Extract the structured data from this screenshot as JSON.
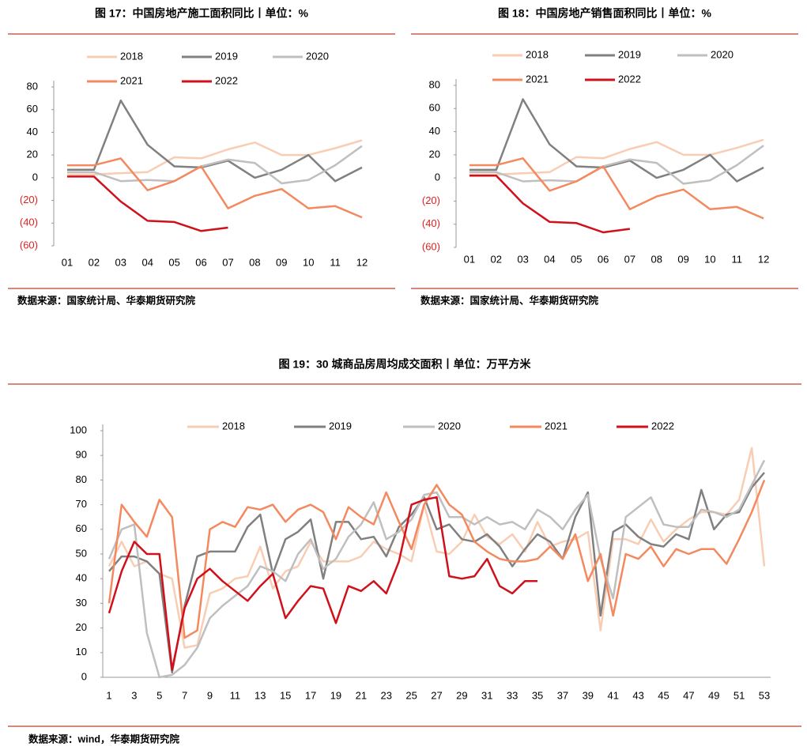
{
  "chart_data": [
    {
      "type": "line",
      "title": "图 17：中国房地产施工面积同比丨单位：%",
      "source": "数据来源：国家统计局、华泰期货研究院",
      "categories": [
        "01",
        "02",
        "03",
        "04",
        "05",
        "06",
        "07",
        "08",
        "09",
        "10",
        "11",
        "12"
      ],
      "ylim": [
        -60,
        80
      ],
      "yticks": [
        {
          "value": -60,
          "label": "(60)"
        },
        {
          "value": -40,
          "label": "(40)"
        },
        {
          "value": -20,
          "label": "(20)"
        },
        0,
        20,
        40,
        60,
        80
      ],
      "series": [
        {
          "name": "2018",
          "color": "#f9cdb4",
          "values": [
            3,
            3,
            4,
            5,
            18,
            17,
            25,
            31,
            20,
            20,
            26,
            33
          ]
        },
        {
          "name": "2019",
          "color": "#808080",
          "values": [
            7,
            7,
            68,
            29,
            10,
            9,
            15,
            0,
            7,
            20,
            -3,
            9
          ]
        },
        {
          "name": "2020",
          "color": "#bfbfbf",
          "values": [
            5,
            5,
            -3,
            -2,
            -3,
            10,
            16,
            13,
            -5,
            -2,
            11,
            28
          ]
        },
        {
          "name": "2021",
          "color": "#f4895f",
          "values": [
            11,
            11,
            17,
            -11,
            -3,
            10,
            -27,
            -16,
            -10,
            -27,
            -25,
            -35
          ]
        },
        {
          "name": "2022",
          "color": "#d0101a",
          "values": [
            1,
            1,
            -21,
            -38,
            -39,
            -47,
            -44,
            null,
            null,
            null,
            null,
            null
          ]
        }
      ]
    },
    {
      "type": "line",
      "title": "图 18：中国房地产销售面积同比丨单位：%",
      "source": "数据来源：国家统计局、华泰期货研究院",
      "categories": [
        "01",
        "02",
        "03",
        "04",
        "05",
        "06",
        "07",
        "08",
        "09",
        "10",
        "11",
        "12"
      ],
      "ylim": [
        -60,
        80
      ],
      "yticks": [
        {
          "value": -60,
          "label": "(60)"
        },
        {
          "value": -40,
          "label": "(40)"
        },
        {
          "value": -20,
          "label": "(20)"
        },
        0,
        20,
        40,
        60,
        80
      ],
      "series": [
        {
          "name": "2018",
          "color": "#f9cdb4",
          "values": [
            3,
            3,
            4,
            5,
            18,
            17,
            25,
            31,
            20,
            20,
            26,
            33
          ]
        },
        {
          "name": "2019",
          "color": "#808080",
          "values": [
            7,
            7,
            68,
            29,
            10,
            9,
            15,
            0,
            7,
            20,
            -3,
            9
          ]
        },
        {
          "name": "2020",
          "color": "#bfbfbf",
          "values": [
            5,
            5,
            -3,
            -2,
            -3,
            10,
            16,
            13,
            -5,
            -2,
            11,
            28
          ]
        },
        {
          "name": "2021",
          "color": "#f4895f",
          "values": [
            11,
            11,
            17,
            -11,
            -3,
            10,
            -27,
            -16,
            -10,
            -27,
            -25,
            -35
          ]
        },
        {
          "name": "2022",
          "color": "#d0101a",
          "values": [
            2,
            2,
            -22,
            -38,
            -39,
            -47,
            -44,
            null,
            null,
            null,
            null,
            null
          ]
        }
      ]
    },
    {
      "type": "line",
      "title": "图 19：30 城商品房周均成交面积丨单位：万平方米",
      "source": "数据来源：wind，华泰期货研究院",
      "categories": [
        "1",
        null,
        "3",
        null,
        "5",
        null,
        "7",
        null,
        "9",
        null,
        "11",
        null,
        "13",
        null,
        "15",
        null,
        "17",
        null,
        "19",
        null,
        "21",
        null,
        "23",
        null,
        "25",
        null,
        "27",
        null,
        "29",
        null,
        "31",
        null,
        "33",
        null,
        "35",
        null,
        "37",
        null,
        "39",
        null,
        "41",
        null,
        "43",
        null,
        "45",
        null,
        "47",
        null,
        "49",
        null,
        "51",
        null,
        "53"
      ],
      "ylim": [
        0,
        100
      ],
      "yticks": [
        0,
        10,
        20,
        30,
        40,
        50,
        60,
        70,
        80,
        90,
        100
      ],
      "series": [
        {
          "name": "2018",
          "color": "#f9cdb4",
          "values": [
            45,
            55,
            45,
            47,
            42,
            40,
            12,
            13,
            34,
            36,
            40,
            41,
            53,
            36,
            43,
            45,
            55,
            47,
            47,
            47,
            49,
            55,
            52,
            50,
            47,
            70,
            51,
            50,
            55,
            66,
            57,
            54,
            58,
            51,
            63,
            53,
            55,
            56,
            59,
            19,
            56,
            56,
            54,
            64,
            55,
            60,
            64,
            67,
            67,
            66,
            72,
            93,
            45
          ]
        },
        {
          "name": "2019",
          "color": "#808080",
          "values": [
            43,
            49,
            49,
            47,
            42,
            2,
            29,
            49,
            51,
            51,
            51,
            61,
            66,
            42,
            56,
            59,
            64,
            40,
            63,
            63,
            56,
            57,
            49,
            61,
            66,
            73,
            60,
            62,
            56,
            55,
            58,
            53,
            45,
            52,
            58,
            55,
            48,
            65,
            75,
            25,
            59,
            62,
            57,
            54,
            53,
            58,
            56,
            76,
            60,
            66,
            67,
            77,
            83
          ]
        },
        {
          "name": "2020",
          "color": "#bfbfbf",
          "values": [
            48,
            60,
            62,
            18,
            0,
            1,
            5,
            12,
            24,
            29,
            33,
            37,
            45,
            43,
            39,
            50,
            56,
            44,
            48,
            57,
            62,
            71,
            56,
            59,
            64,
            74,
            75,
            65,
            65,
            62,
            65,
            62,
            63,
            60,
            68,
            65,
            60,
            68,
            74,
            48,
            32,
            65,
            69,
            73,
            62,
            61,
            61,
            68,
            67,
            65,
            68,
            78,
            88
          ]
        },
        {
          "name": "2021",
          "color": "#f4895f",
          "values": [
            30,
            70,
            63,
            57,
            72,
            65,
            16,
            19,
            60,
            63,
            61,
            69,
            68,
            70,
            63,
            68,
            70,
            67,
            56,
            69,
            65,
            62,
            75,
            63,
            52,
            70,
            78,
            70,
            66,
            55,
            51,
            48,
            47,
            47,
            48,
            53,
            48,
            58,
            39,
            50,
            25,
            50,
            48,
            53,
            45,
            52,
            50,
            52,
            52,
            46,
            56,
            67,
            80
          ]
        },
        {
          "name": "2022",
          "color": "#d0101a",
          "values": [
            26,
            43,
            55,
            50,
            50,
            3,
            28,
            40,
            44,
            39,
            35,
            31,
            37,
            42,
            24,
            31,
            37,
            36,
            22,
            37,
            35,
            39,
            34,
            47,
            70,
            72,
            73,
            41,
            40,
            41,
            48,
            37,
            34,
            39,
            39,
            null,
            null,
            null,
            null,
            null,
            null,
            null,
            null,
            null,
            null,
            null,
            null,
            null,
            null,
            null,
            null,
            null,
            null
          ]
        }
      ]
    }
  ]
}
